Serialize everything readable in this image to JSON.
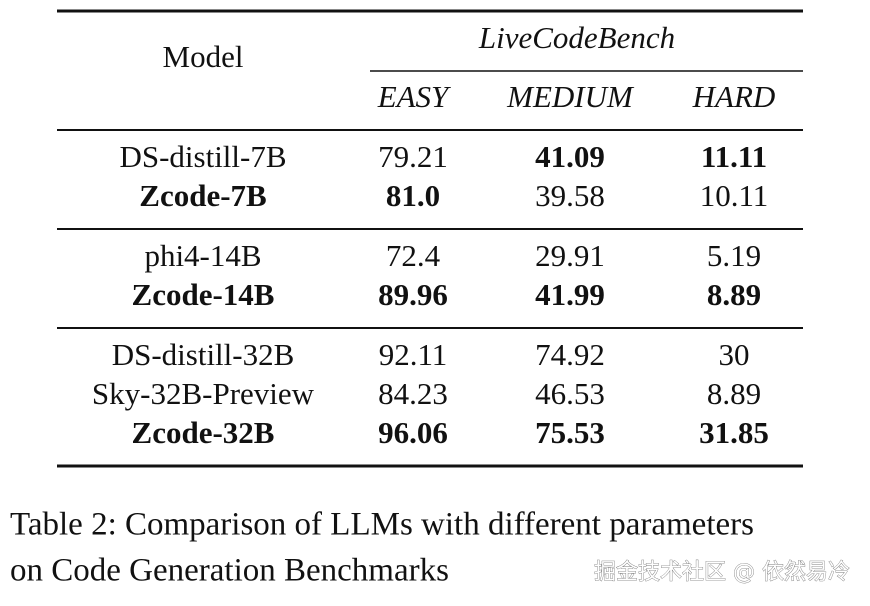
{
  "table": {
    "header": {
      "model": "Model",
      "benchmark": "LiveCodeBench",
      "columns": [
        "EASY",
        "MEDIUM",
        "HARD"
      ]
    },
    "groups": [
      {
        "rows": [
          {
            "cells": [
              "DS-distill-7B",
              "79.21",
              "41.09",
              "11.11"
            ],
            "bold": [
              false,
              false,
              true,
              true
            ]
          },
          {
            "cells": [
              "Zcode-7B",
              "81.0",
              "39.58",
              "10.11"
            ],
            "bold": [
              true,
              true,
              false,
              false
            ]
          }
        ]
      },
      {
        "rows": [
          {
            "cells": [
              "phi4-14B",
              "72.4",
              "29.91",
              "5.19"
            ],
            "bold": [
              false,
              false,
              false,
              false
            ]
          },
          {
            "cells": [
              "Zcode-14B",
              "89.96",
              "41.99",
              "8.89"
            ],
            "bold": [
              true,
              true,
              true,
              true
            ]
          }
        ]
      },
      {
        "rows": [
          {
            "cells": [
              "DS-distill-32B",
              "92.11",
              "74.92",
              "30"
            ],
            "bold": [
              false,
              false,
              false,
              false
            ]
          },
          {
            "cells": [
              "Sky-32B-Preview",
              "84.23",
              "46.53",
              "8.89"
            ],
            "bold": [
              false,
              false,
              false,
              false
            ]
          },
          {
            "cells": [
              "Zcode-32B",
              "96.06",
              "75.53",
              "31.85"
            ],
            "bold": [
              true,
              true,
              true,
              true
            ]
          }
        ]
      }
    ]
  },
  "caption": [
    "Table 2: Comparison of LLMs with different parameters",
    "on Code Generation Benchmarks"
  ],
  "watermark": "掘金技术社区 @ 依然易冷"
}
